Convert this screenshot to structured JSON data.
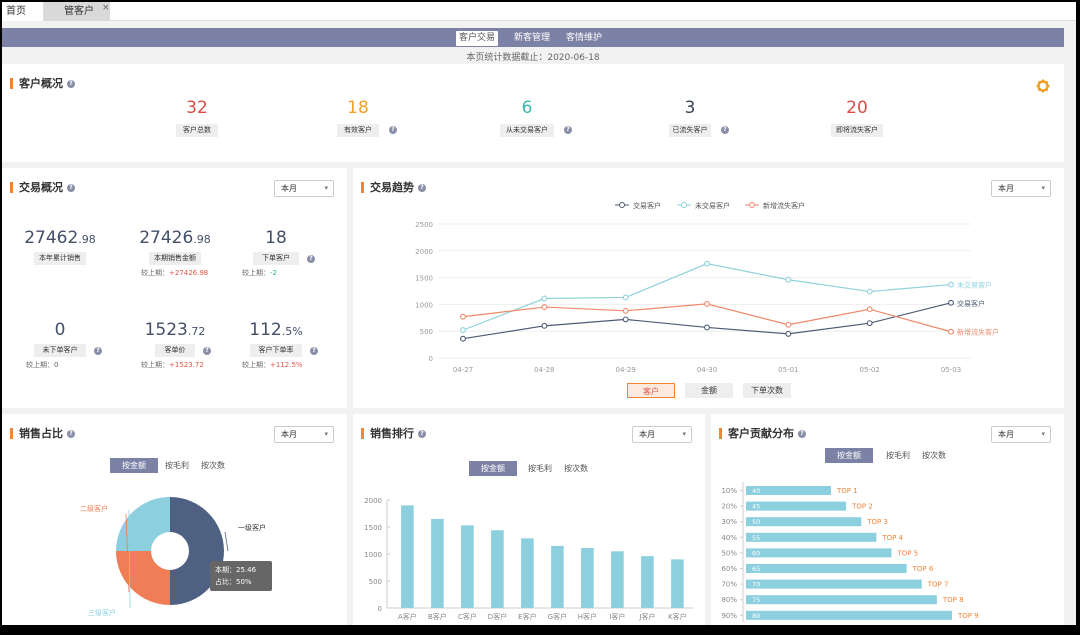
{
  "window_tabs": {
    "home": "首页",
    "customer": "管客户",
    "close": "×"
  },
  "nav": {
    "tabs": [
      "客户交易",
      "新客管理",
      "客情维护"
    ],
    "active": 0,
    "date_note": "本页统计数据截止：2020-06-18"
  },
  "overview": {
    "title": "客户概况",
    "items": [
      {
        "value": "32",
        "label": "客户总数",
        "color": "#d94c45",
        "help": false
      },
      {
        "value": "18",
        "label": "有效客户",
        "color": "#f0a030",
        "help": true
      },
      {
        "value": "6",
        "label": "从未交易客户",
        "color": "#3cb7b0",
        "help": true
      },
      {
        "value": "3",
        "label": "已流失客户",
        "color": "#3b4454",
        "help": true
      },
      {
        "value": "20",
        "label": "即将流失客户",
        "color": "#d94c45",
        "help": false
      }
    ]
  },
  "trade_overview": {
    "title": "交易概况",
    "select": "本月",
    "items": [
      {
        "int": "27462",
        "dec": ".98",
        "label": "本年累计销售",
        "help": false,
        "cmp": "",
        "cmp_val": "",
        "cmp_color": ""
      },
      {
        "int": "27426",
        "dec": ".98",
        "label": "本期销售金额",
        "help": false,
        "cmp": "较上期：",
        "cmp_val": "+27426.98",
        "cmp_color": "red"
      },
      {
        "int": "18",
        "dec": "",
        "label": "下单客户",
        "help": true,
        "cmp": "较上期：",
        "cmp_val": "-2",
        "cmp_color": "green"
      },
      {
        "int": "0",
        "dec": "",
        "label": "未下单客户",
        "help": true,
        "cmp": "较上期：0",
        "cmp_val": "",
        "cmp_color": ""
      },
      {
        "int": "1523",
        "dec": ".72",
        "label": "客单价",
        "help": true,
        "cmp": "较上期：",
        "cmp_val": "+1523.72",
        "cmp_color": "red"
      },
      {
        "int": "112",
        "dec": ".5%",
        "label": "客户下单率",
        "help": true,
        "cmp": "较上期：",
        "cmp_val": "+112.5%",
        "cmp_color": "red"
      }
    ]
  },
  "trend": {
    "title": "交易趋势",
    "select": "本月",
    "buttons": [
      "客户",
      "金额",
      "下单次数"
    ],
    "active_button": 0
  },
  "sales_share": {
    "title": "销售占比",
    "select": "本月",
    "segments": [
      "按金额",
      "按毛利",
      "按次数"
    ],
    "active": 0,
    "tooltip_line1": "本期：25.46",
    "tooltip_line2": "占比：50%"
  },
  "sales_rank": {
    "title": "销售排行",
    "select": "本月",
    "segments": [
      "按金额",
      "按毛利",
      "按次数"
    ],
    "active": 0
  },
  "contribution": {
    "title": "客户贡献分布",
    "select": "本月",
    "segments": [
      "按金额",
      "按毛利",
      "按次数"
    ],
    "active": 0
  },
  "colors": {
    "accent": "#f0853a",
    "nav": "#7c82a6",
    "bar": "#8ccfdf"
  },
  "chart_data": [
    {
      "type": "line",
      "title": "交易趋势",
      "x": [
        "04-27",
        "04-28",
        "04-29",
        "04-30",
        "05-01",
        "05-02",
        "05-03"
      ],
      "ylim": [
        0,
        2500
      ],
      "yticks": [
        0,
        500,
        1000,
        1500,
        2000,
        2500
      ],
      "series": [
        {
          "name": "交易客户",
          "color": "#4e5a75",
          "values": [
            360,
            600,
            720,
            570,
            450,
            650,
            1030
          ]
        },
        {
          "name": "未交易客户",
          "color": "#8fd2dc",
          "values": [
            520,
            1110,
            1130,
            1760,
            1460,
            1240,
            1370
          ]
        },
        {
          "name": "新增流失客户",
          "color": "#ef8a6a",
          "values": [
            770,
            950,
            880,
            1010,
            620,
            910,
            490
          ]
        }
      ]
    },
    {
      "type": "pie",
      "title": "销售占比",
      "labels": [
        "一级客户",
        "二级客户",
        "三级客户"
      ],
      "values": [
        50,
        25,
        25
      ],
      "colors": [
        "#4e6182",
        "#ef7e56",
        "#8ccfdf"
      ]
    },
    {
      "type": "bar",
      "title": "销售排行",
      "categories": [
        "A客户",
        "B客户",
        "C客户",
        "D客户",
        "E客户",
        "G客户",
        "H客户",
        "I客户",
        "J客户",
        "K客户"
      ],
      "values": [
        1900,
        1650,
        1530,
        1440,
        1290,
        1150,
        1110,
        1050,
        960,
        900
      ],
      "ylim": [
        0,
        2000
      ],
      "yticks": [
        0,
        500,
        1000,
        1500,
        2000
      ]
    },
    {
      "type": "bar",
      "title": "客户贡献分布",
      "orientation": "horizontal",
      "categories": [
        "10%",
        "20%",
        "30%",
        "40%",
        "50%",
        "60%",
        "70%",
        "80%",
        "90%"
      ],
      "values": [
        40,
        45,
        50,
        55,
        60,
        65,
        70,
        75,
        80
      ],
      "labels": [
        "TOP 1",
        "TOP 2",
        "TOP 3",
        "TOP 4",
        "TOP 5",
        "TOP 6",
        "TOP 7",
        "TOP 8",
        "TOP 9"
      ]
    }
  ]
}
